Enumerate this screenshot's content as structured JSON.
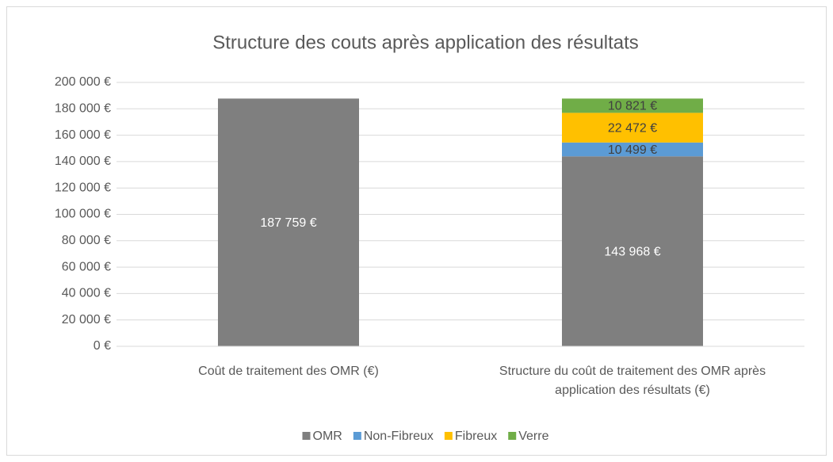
{
  "chart_data": {
    "type": "stacked_bar",
    "title": "Structure des couts après application des résultats",
    "categories": [
      "Coût de traitement des OMR (€)",
      "Structure du coût de traitement des OMR après application des résultats (€)"
    ],
    "series": [
      {
        "name": "OMR",
        "color": "#7f7f7f",
        "values": [
          187759,
          143968
        ],
        "value_labels": [
          "187 759 €",
          "143 968 €"
        ],
        "label_color": "#ffffff"
      },
      {
        "name": "Non-Fibreux",
        "color": "#5b9bd5",
        "values": [
          null,
          10499
        ],
        "value_labels": [
          null,
          "10 499 €"
        ],
        "label_color": "#404040"
      },
      {
        "name": "Fibreux",
        "color": "#ffc000",
        "values": [
          null,
          22472
        ],
        "value_labels": [
          null,
          "22 472 €"
        ],
        "label_color": "#404040"
      },
      {
        "name": "Verre",
        "color": "#70ad47",
        "values": [
          null,
          10821
        ],
        "value_labels": [
          null,
          "10 821 €"
        ],
        "label_color": "#404040"
      }
    ],
    "ylim": [
      0,
      200000
    ],
    "yticks": [
      {
        "value": 0,
        "label": "0 €"
      },
      {
        "value": 20000,
        "label": "20 000 €"
      },
      {
        "value": 40000,
        "label": "40 000 €"
      },
      {
        "value": 60000,
        "label": "60 000 €"
      },
      {
        "value": 80000,
        "label": "80 000 €"
      },
      {
        "value": 100000,
        "label": "100 000 €"
      },
      {
        "value": 120000,
        "label": "120 000 €"
      },
      {
        "value": 140000,
        "label": "140 000 €"
      },
      {
        "value": 160000,
        "label": "160 000 €"
      },
      {
        "value": 180000,
        "label": "180 000 €"
      },
      {
        "value": 200000,
        "label": "200 000 €"
      }
    ],
    "grid": true,
    "legend": "bottom"
  }
}
